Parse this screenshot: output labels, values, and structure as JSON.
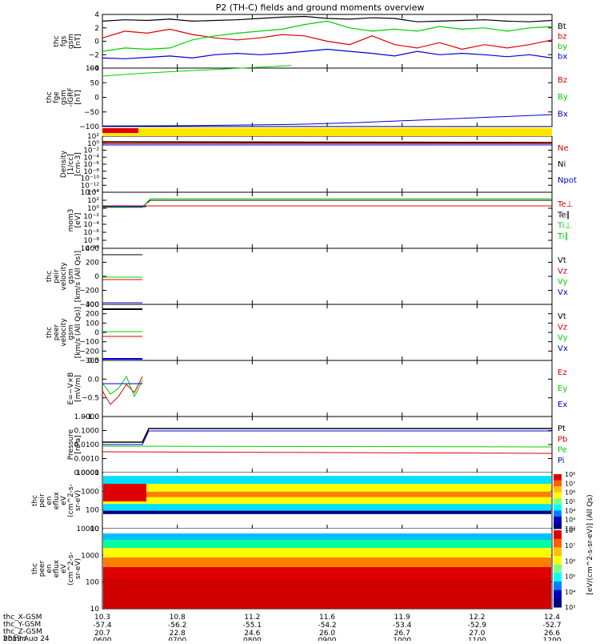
{
  "title": "P2 (TH-C) fields and ground moments overview",
  "colors": {
    "black": "#000000",
    "red": "#e00000",
    "green": "#00d000",
    "blue": "#0000e0",
    "yellow": "#ffe600",
    "darkred": "#cc0000"
  },
  "chart_data": [
    {
      "type": "line",
      "ylabel": [
        "thc",
        "fgs",
        "gsm",
        "[nT]"
      ],
      "ylim": [
        -4,
        4
      ],
      "yticks": [
        "4",
        "2",
        "0",
        "−2",
        "−4"
      ],
      "series": [
        {
          "name": "Bt",
          "color": "#000000",
          "values": [
            3.0,
            3.2,
            3.1,
            3.3,
            3.0,
            3.1,
            3.2,
            3.4,
            3.6,
            3.7,
            3.4,
            3.3,
            3.5,
            3.4,
            2.9,
            3.0,
            3.1,
            3.2,
            3.0,
            2.9,
            3.1
          ]
        },
        {
          "name": "bz",
          "color": "#e00000",
          "values": [
            0.5,
            1.5,
            1.2,
            1.8,
            1.0,
            0.5,
            0.2,
            0.5,
            1.0,
            0.8,
            0.0,
            -0.5,
            0.8,
            -0.5,
            -1.0,
            -0.2,
            -1.2,
            -0.5,
            -1.0,
            -0.5,
            0.2
          ]
        },
        {
          "name": "by",
          "color": "#00d000",
          "values": [
            -1.5,
            -1.0,
            -1.2,
            -1.0,
            0.2,
            0.8,
            1.2,
            1.5,
            1.8,
            2.5,
            3.0,
            2.0,
            1.5,
            1.8,
            1.5,
            2.2,
            1.8,
            2.0,
            1.5,
            2.0,
            2.2
          ]
        },
        {
          "name": "bx",
          "color": "#0000e0",
          "values": [
            -2.5,
            -2.6,
            -2.4,
            -2.2,
            -2.5,
            -2.0,
            -1.8,
            -2.0,
            -1.8,
            -1.5,
            -1.2,
            -1.5,
            -1.8,
            -2.2,
            -1.5,
            -2.0,
            -1.8,
            -2.0,
            -2.3,
            -2.0,
            -2.5
          ]
        }
      ]
    },
    {
      "type": "line",
      "ylabel": [
        "thc",
        "fge",
        "gsm",
        "-IGRF",
        "[nT]"
      ],
      "ylim": [
        -120,
        100
      ],
      "yticks": [
        "100",
        "50",
        "0",
        "−50",
        "−100"
      ],
      "series": [
        {
          "name": "Bz",
          "color": "#e00000",
          "values": []
        },
        {
          "name": "By",
          "color": "#00d000",
          "values": [
            70,
            80,
            88,
            95,
            102,
            110
          ]
        },
        {
          "name": "Bx",
          "color": "#0000e0",
          "values": [
            -118,
            -117,
            -115,
            -112,
            -105,
            -95,
            -85,
            -75
          ]
        }
      ]
    },
    {
      "type": "line",
      "ylabel": [
        "Density",
        "[1/cc]",
        "[cm-3]"
      ],
      "yticks": [
        "10²",
        "10⁰",
        "10⁻²",
        "10⁻⁴",
        "10⁻⁶",
        "10⁻⁸",
        "10⁻¹⁰",
        "10⁻¹²",
        "10⁻¹⁴"
      ],
      "series": [
        {
          "name": "Ne"
        },
        {
          "name": "Ni"
        },
        {
          "name": "Npot"
        }
      ]
    },
    {
      "type": "line",
      "ylabel": [
        "mom3",
        "[eV]"
      ],
      "yticks": [
        "10⁴",
        "10²",
        "10⁰",
        "10⁻²",
        "10⁻⁴",
        "10⁻⁶",
        "10⁻⁸",
        "10⁻¹⁰"
      ],
      "series": [
        {
          "name": "Te⊥"
        },
        {
          "name": "Te∥"
        },
        {
          "name": "Ti⊥"
        },
        {
          "name": "Ti∥"
        }
      ]
    },
    {
      "type": "line",
      "ylabel": [
        "thc",
        "peir",
        "velocity",
        "gsm",
        "[km/s (All Qs)]"
      ],
      "yticks": [
        "400",
        "200",
        "0",
        "−200",
        "−400"
      ],
      "series": [
        {
          "name": "Vt"
        },
        {
          "name": "Vz"
        },
        {
          "name": "Vy"
        },
        {
          "name": "Vx"
        }
      ]
    },
    {
      "type": "line",
      "ylabel": [
        "thc",
        "peer",
        "velocity",
        "gsm",
        "[km/s (All Qs)]"
      ],
      "yticks": [
        "300",
        "200",
        "100",
        "0",
        "−100",
        "−200",
        "−300"
      ],
      "series": [
        {
          "name": "Vt"
        },
        {
          "name": "Vz"
        },
        {
          "name": "Vy"
        },
        {
          "name": "Vx"
        }
      ]
    },
    {
      "type": "line",
      "ylabel": [
        "E=−V×B",
        "[mV/m]"
      ],
      "yticks": [
        "0.5",
        "0.0",
        "−0.5",
        "−1.0"
      ],
      "series": [
        {
          "name": "Ez"
        },
        {
          "name": "Ey"
        },
        {
          "name": "Ex"
        }
      ]
    },
    {
      "type": "line",
      "ylabel": [
        "Pressure",
        "[nPa]"
      ],
      "yticks": [
        "1.0000",
        "0.1000",
        "0.0100",
        "0.0010",
        "0.0001"
      ],
      "series": [
        {
          "name": "Pt"
        },
        {
          "name": "Pb"
        },
        {
          "name": "Pe"
        },
        {
          "name": "Pi"
        }
      ]
    },
    {
      "type": "heatmap",
      "ylabel": [
        "thc",
        "peir",
        "en",
        "eflux",
        "eV",
        "(cm^2-s-",
        "sr-eV)"
      ],
      "yticks": [
        "10000",
        "1000",
        "100",
        "10"
      ]
    },
    {
      "type": "heatmap",
      "ylabel": [
        "thc",
        "peer",
        "en",
        "eflux",
        "eV",
        "(cm^2-s-",
        "sr-eV)"
      ],
      "yticks": [
        "10000",
        "1000",
        "100",
        "10"
      ]
    }
  ],
  "colorbar": {
    "ticks": [
      "10⁸",
      "10⁷",
      "10⁶",
      "10⁵",
      "10⁴",
      "10³",
      "10²"
    ],
    "ticks2": [
      "10⁸",
      "10⁷",
      "10⁶",
      "10⁵",
      "10⁴",
      "10³"
    ],
    "label": "[eV/(cm^2-s-sr-eV)] (All Qs)",
    "label2": "eV/(cm^2-s-sr-eV)] (All Qs)"
  },
  "xaxis": {
    "rows": [
      {
        "name": "thc_X-GSM",
        "values": [
          "10.3",
          "10.8",
          "11.2",
          "11.6",
          "11.9",
          "12.2",
          "12.4"
        ]
      },
      {
        "name": "-57.4",
        "values": [
          "-57.4",
          "-56.2",
          "-55.1",
          "-54.2",
          "-53.4",
          "-52.9",
          "-52.7"
        ]
      },
      {
        "name": "thc_Y-GSM",
        "values": [
          "20.7",
          "22.8",
          "24.6",
          "26.0",
          "26.7",
          "27.0",
          "26.6"
        ]
      },
      {
        "name": "hhmm",
        "values": [
          "0600",
          "0700",
          "0800",
          "0900",
          "1000",
          "1100",
          "1200"
        ]
      }
    ],
    "labels": [
      "thc_X-GSM",
      "thc_Y-GSM",
      "thc_Z-GSM",
      "hhmm"
    ],
    "date": "2019 Aug 24"
  }
}
